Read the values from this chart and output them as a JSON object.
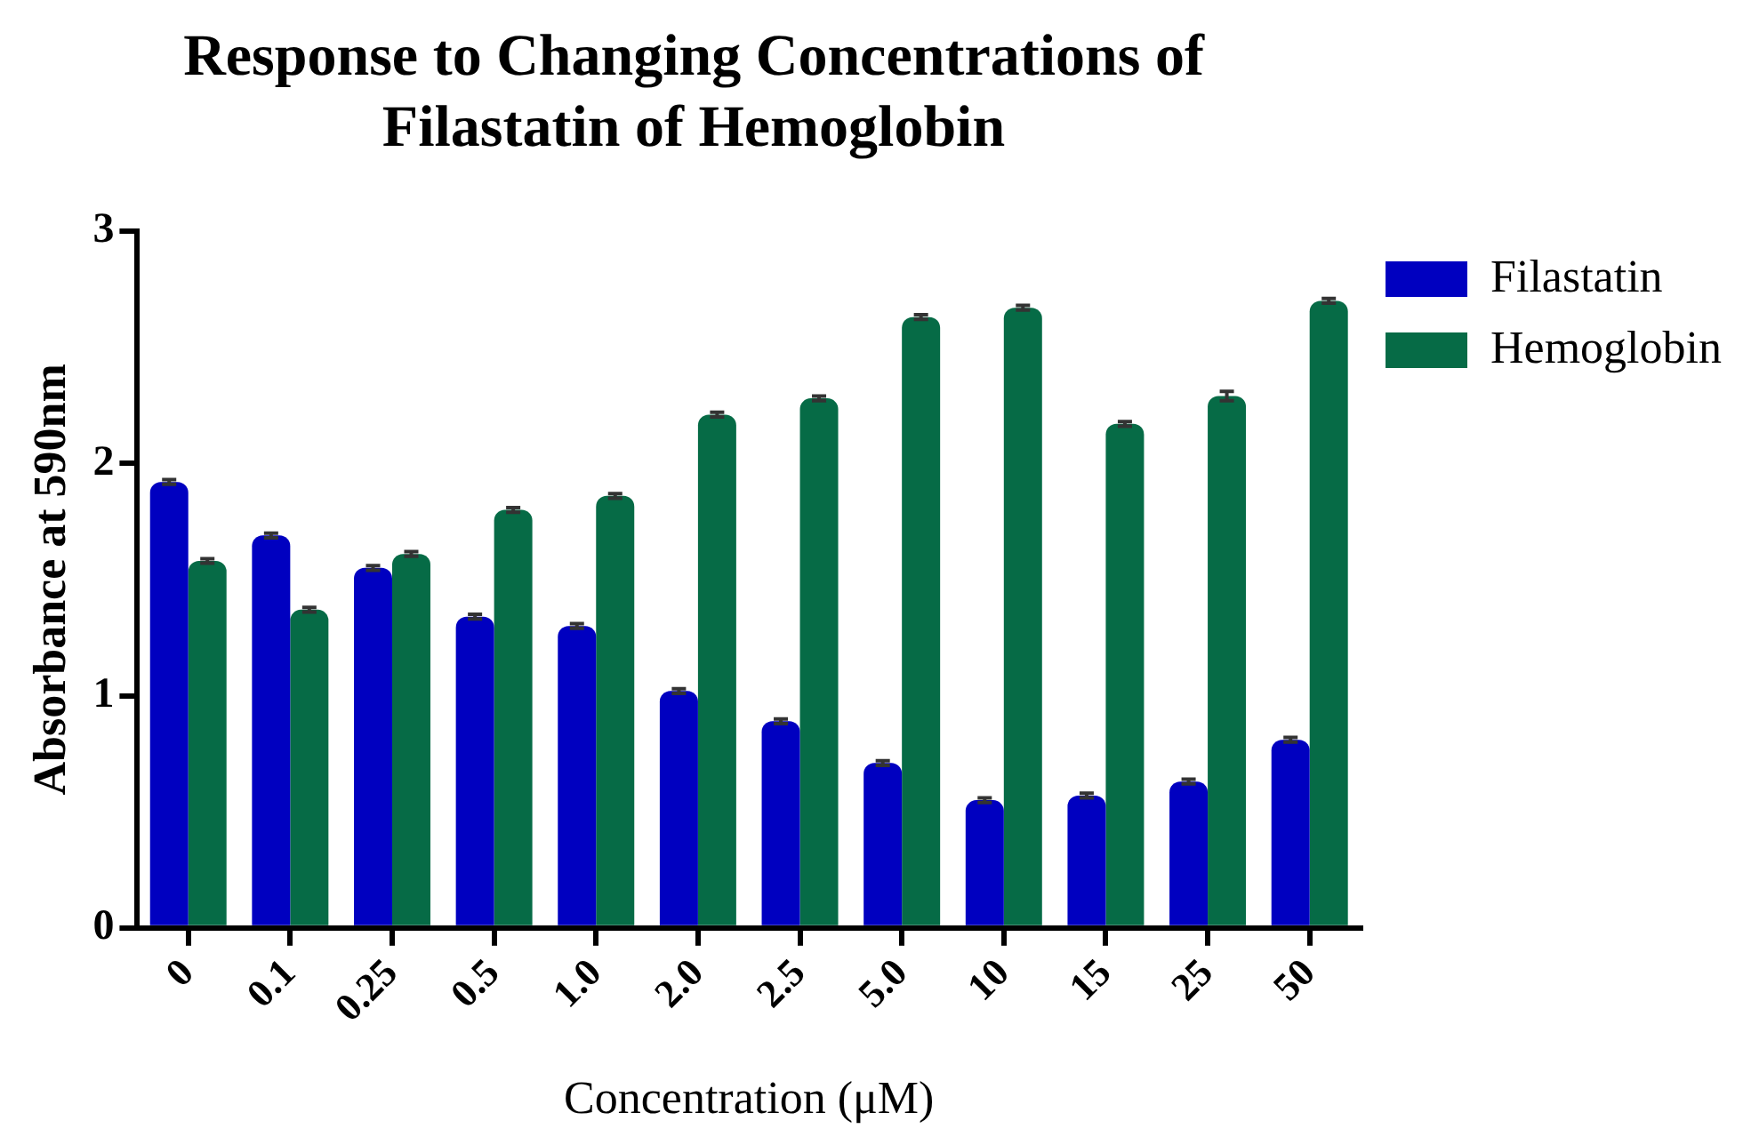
{
  "chart_data": {
    "type": "bar",
    "title": "Response to Changing Concentrations of Filastatin of Hemoglobin",
    "xlabel": "Concentration (μM)",
    "ylabel": "Absorbance at 590nm",
    "categories": [
      "0",
      "0.1",
      "0.25",
      "0.5",
      "1.0",
      "2.0",
      "2.5",
      "5.0",
      "10",
      "15",
      "25",
      "50"
    ],
    "series": [
      {
        "name": "Filastatin",
        "color": "#0000c0",
        "values": [
          1.92,
          1.69,
          1.55,
          1.34,
          1.3,
          1.02,
          0.89,
          0.71,
          0.55,
          0.57,
          0.63,
          0.81
        ],
        "errors": [
          0.01,
          0.01,
          0.01,
          0.01,
          0.01,
          0.01,
          0.01,
          0.01,
          0.01,
          0.01,
          0.01,
          0.01
        ]
      },
      {
        "name": "Hemoglobin",
        "color": "#066b46",
        "values": [
          1.58,
          1.37,
          1.61,
          1.8,
          1.86,
          2.21,
          2.28,
          2.63,
          2.67,
          2.17,
          2.29,
          2.7
        ],
        "errors": [
          0.01,
          0.01,
          0.01,
          0.01,
          0.01,
          0.01,
          0.01,
          0.01,
          0.01,
          0.01,
          0.02,
          0.01
        ]
      }
    ],
    "ylim": [
      0,
      3
    ],
    "yticks": [
      0,
      1,
      2,
      3
    ],
    "grid": false,
    "legend": "top right"
  }
}
